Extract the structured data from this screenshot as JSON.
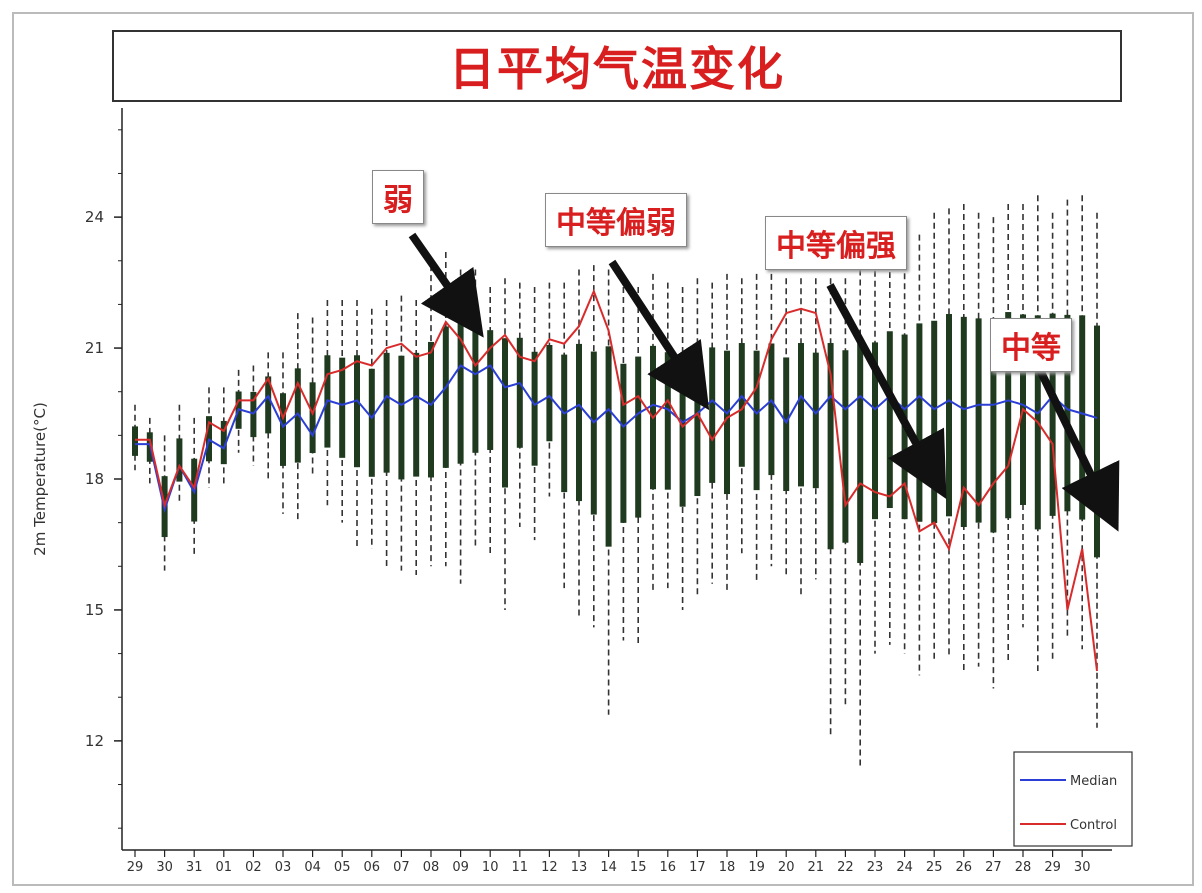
{
  "chart_data": {
    "type": "line",
    "title": "日平均气温变化",
    "ylabel": "2m Temperature(°C)",
    "xlabel": "",
    "ylim": [
      9.5,
      26.5
    ],
    "yticks": [
      12,
      15,
      18,
      21,
      24
    ],
    "categories": [
      "29",
      "30",
      "31",
      "01",
      "02",
      "03",
      "04",
      "05",
      "06",
      "07",
      "08",
      "09",
      "10",
      "11",
      "12",
      "13",
      "14",
      "15",
      "16",
      "17",
      "18",
      "19",
      "20",
      "21",
      "22",
      "23",
      "24",
      "25",
      "26",
      "27",
      "28",
      "29",
      "30"
    ],
    "x": [
      29,
      29.5,
      30,
      30.5,
      31,
      31.5,
      32,
      32.5,
      33,
      33.5,
      34,
      34.5,
      35,
      35.5,
      36,
      36.5,
      37,
      37.5,
      38,
      38.5,
      39,
      39.5,
      40,
      40.5,
      41,
      41.5,
      42,
      42.5,
      43,
      43.5,
      44,
      44.5,
      45,
      45.5,
      46,
      46.5,
      47,
      47.5,
      48,
      48.5,
      49,
      49.5,
      50,
      50.5,
      51,
      51.5,
      52,
      52.5,
      53,
      53.5,
      54,
      54.5,
      55,
      55.5,
      56,
      56.5,
      57,
      57.5,
      58,
      58.5,
      59,
      59.5,
      60,
      60.5,
      61,
      61.5
    ],
    "series": [
      {
        "name": "Median",
        "color": "#2b3fd6",
        "values": [
          18.8,
          18.8,
          17.3,
          18.3,
          17.7,
          18.9,
          18.7,
          19.6,
          19.5,
          19.9,
          19.2,
          19.5,
          19.0,
          19.8,
          19.7,
          19.8,
          19.4,
          19.9,
          19.7,
          19.9,
          19.7,
          20.1,
          20.6,
          20.4,
          20.6,
          20.1,
          20.2,
          19.7,
          19.9,
          19.5,
          19.7,
          19.3,
          19.6,
          19.2,
          19.5,
          19.7,
          19.6,
          19.3,
          19.5,
          19.8,
          19.5,
          19.9,
          19.5,
          19.8,
          19.3,
          19.9,
          19.5,
          19.9,
          19.6,
          19.9,
          19.6,
          19.9,
          19.6,
          19.9,
          19.6,
          19.8,
          19.6,
          19.7,
          19.7,
          19.8,
          19.7,
          19.5,
          19.9,
          19.6,
          19.5,
          19.4
        ]
      },
      {
        "name": "Control",
        "color": "#d82c2c",
        "values": [
          18.9,
          18.9,
          17.4,
          18.3,
          17.8,
          19.3,
          19.1,
          19.8,
          19.8,
          20.3,
          19.4,
          20.2,
          19.5,
          20.4,
          20.5,
          20.7,
          20.6,
          21.0,
          21.1,
          20.8,
          20.9,
          21.6,
          21.2,
          20.6,
          21.0,
          21.3,
          20.8,
          20.7,
          21.2,
          21.1,
          21.5,
          22.3,
          21.4,
          19.7,
          19.9,
          19.4,
          19.8,
          19.2,
          19.5,
          18.9,
          19.4,
          19.6,
          20.1,
          21.2,
          21.8,
          21.9,
          21.8,
          20.4,
          17.4,
          17.9,
          17.7,
          17.6,
          17.9,
          16.8,
          17.0,
          16.4,
          17.8,
          17.4,
          17.9,
          18.3,
          19.6,
          19.3,
          18.8,
          15.0,
          16.4,
          13.6
        ]
      }
    ],
    "box_whiskers": {
      "note": "ensemble spread per half-day",
      "x": [
        29,
        29.5,
        30,
        30.5,
        31,
        31.5,
        32,
        32.5,
        33,
        33.5,
        34,
        34.5,
        35,
        35.5,
        36,
        36.5,
        37,
        37.5,
        38,
        38.5,
        39,
        39.5,
        40,
        40.5,
        41,
        41.5,
        42,
        42.5,
        43,
        43.5,
        44,
        44.5,
        45,
        45.5,
        46,
        46.5,
        47,
        47.5,
        48,
        48.5,
        49,
        49.5,
        50,
        50.5,
        51,
        51.5,
        52,
        52.5,
        53,
        53.5,
        54,
        54.5,
        55,
        55.5,
        56,
        56.5,
        57,
        57.5,
        58,
        58.5,
        59,
        59.5,
        60,
        60.5,
        61,
        61.5
      ],
      "lower": [
        18.2,
        17.9,
        15.9,
        17.5,
        16.2,
        17.8,
        17.9,
        18.6,
        18.3,
        18.0,
        17.2,
        17.0,
        18.1,
        17.4,
        17.0,
        16.4,
        16.4,
        16.0,
        15.9,
        15.8,
        16.0,
        16.0,
        15.6,
        16.4,
        16.3,
        15.0,
        16.9,
        16.6,
        17.6,
        15.5,
        14.8,
        14.6,
        12.6,
        14.3,
        14.2,
        15.4,
        15.5,
        15.0,
        15.3,
        15.6,
        15.4,
        16.3,
        15.6,
        16.0,
        15.8,
        15.3,
        15.7,
        12.1,
        12.8,
        11.4,
        14.0,
        14.2,
        14.0,
        13.5,
        13.8,
        13.9,
        13.6,
        13.7,
        13.2,
        13.8,
        14.6,
        13.6,
        13.8,
        14.4,
        14.1,
        12.3
      ],
      "upper": [
        19.7,
        19.4,
        19.0,
        19.7,
        19.4,
        20.1,
        20.1,
        20.5,
        20.6,
        20.9,
        20.9,
        21.8,
        21.7,
        22.1,
        22.1,
        22.1,
        21.9,
        22.1,
        22.2,
        22.1,
        22.9,
        23.2,
        22.8,
        22.8,
        22.4,
        22.6,
        22.5,
        22.4,
        22.5,
        22.5,
        22.8,
        22.9,
        22.8,
        22.4,
        22.4,
        22.7,
        22.5,
        22.4,
        22.6,
        22.5,
        22.7,
        22.6,
        22.7,
        22.7,
        22.6,
        22.6,
        22.6,
        22.6,
        22.6,
        22.8,
        23.0,
        23.2,
        23.4,
        23.6,
        24.1,
        24.2,
        24.3,
        24.1,
        24.0,
        24.3,
        24.3,
        24.5,
        24.1,
        24.4,
        24.5,
        24.1
      ]
    },
    "legend": {
      "position": "bottom-right",
      "entries": [
        "Median",
        "Control"
      ]
    },
    "annotations": [
      {
        "text": "弱"
      },
      {
        "text": "中等偏弱"
      },
      {
        "text": "中等偏强"
      },
      {
        "text": "中等"
      }
    ]
  }
}
